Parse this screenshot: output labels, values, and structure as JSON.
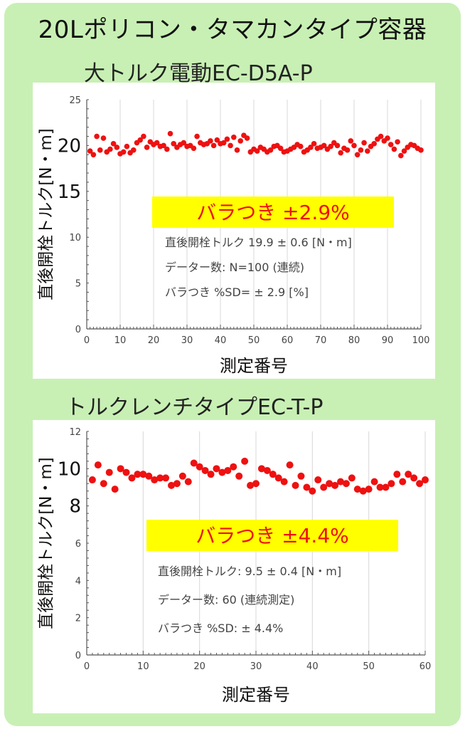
{
  "title": "20Lポリコン・タマカンタイプ容器",
  "chart_data": [
    {
      "type": "scatter",
      "title": "大トルク電動EC-D5A-P",
      "xlabel": "測定番号",
      "ylabel": "直後開栓トルク[N・m]",
      "xlim": [
        0,
        100
      ],
      "ylim": [
        0,
        25
      ],
      "xticks": [
        0,
        10,
        20,
        30,
        40,
        50,
        60,
        70,
        80,
        90,
        100
      ],
      "yticks": [
        0,
        5,
        10,
        15,
        20,
        25
      ],
      "point_color": "#ee1111",
      "highlight": "バラつき ±2.9%",
      "notes": [
        "直後開栓トルク 19.9 ± 0.6 [N・m]",
        "データー数: N=100 (連続)",
        "バラつき %SD= ± 2.9 [%]"
      ],
      "x": [
        1,
        2,
        3,
        4,
        5,
        6,
        7,
        8,
        9,
        10,
        11,
        12,
        13,
        14,
        15,
        16,
        17,
        18,
        19,
        20,
        21,
        22,
        23,
        24,
        25,
        26,
        27,
        28,
        29,
        30,
        31,
        32,
        33,
        34,
        35,
        36,
        37,
        38,
        39,
        40,
        41,
        42,
        43,
        44,
        45,
        46,
        47,
        48,
        49,
        50,
        51,
        52,
        53,
        54,
        55,
        56,
        57,
        58,
        59,
        60,
        61,
        62,
        63,
        64,
        65,
        66,
        67,
        68,
        69,
        70,
        71,
        72,
        73,
        74,
        75,
        76,
        77,
        78,
        79,
        80,
        81,
        82,
        83,
        84,
        85,
        86,
        87,
        88,
        89,
        90,
        91,
        92,
        93,
        94,
        95,
        96,
        97,
        98,
        99,
        100
      ],
      "y": [
        19.4,
        19.0,
        21.0,
        19.5,
        20.8,
        19.3,
        19.6,
        20.2,
        19.8,
        19.1,
        19.3,
        19.9,
        19.2,
        19.5,
        20.3,
        20.6,
        21.0,
        19.8,
        20.4,
        20.1,
        20.3,
        19.9,
        20.0,
        19.6,
        21.3,
        20.2,
        19.8,
        20.1,
        20.3,
        19.9,
        20.0,
        19.7,
        21.0,
        20.3,
        20.1,
        20.2,
        20.5,
        20.0,
        20.6,
        20.2,
        20.3,
        20.7,
        20.0,
        20.9,
        19.5,
        20.5,
        21.1,
        20.8,
        19.3,
        19.6,
        19.4,
        19.8,
        19.6,
        19.3,
        19.5,
        19.9,
        20.0,
        19.7,
        19.3,
        19.4,
        19.6,
        19.8,
        20.1,
        19.9,
        19.3,
        19.5,
        19.8,
        20.2,
        19.7,
        19.8,
        20.0,
        19.6,
        19.9,
        20.3,
        20.0,
        19.2,
        19.7,
        19.5,
        20.5,
        20.0,
        19.0,
        19.5,
        20.3,
        19.4,
        19.9,
        20.2,
        20.7,
        21.0,
        20.5,
        20.8,
        20.1,
        19.6,
        20.4,
        18.9,
        19.4,
        19.8,
        20.1,
        20.0,
        19.7,
        19.5
      ]
    },
    {
      "type": "scatter",
      "title": "トルクレンチタイプEC-T-P",
      "xlabel": "測定番号",
      "ylabel": "直後開栓トルク[N・m]",
      "xlim": [
        0,
        60
      ],
      "ylim": [
        0,
        12
      ],
      "xticks": [
        0,
        10,
        20,
        30,
        40,
        50,
        60
      ],
      "yticks": [
        0,
        2,
        4,
        6,
        8,
        10,
        12
      ],
      "point_color": "#ee1111",
      "highlight": "バラつき ±4.4%",
      "notes": [
        "直後開栓トルク: 9.5 ± 0.4 [N・m]",
        "データー数: 60 (連続測定)",
        "バラつき %SD: ± 4.4%"
      ],
      "x": [
        1,
        2,
        3,
        4,
        5,
        6,
        7,
        8,
        9,
        10,
        11,
        12,
        13,
        14,
        15,
        16,
        17,
        18,
        19,
        20,
        21,
        22,
        23,
        24,
        25,
        26,
        27,
        28,
        29,
        30,
        31,
        32,
        33,
        34,
        35,
        36,
        37,
        38,
        39,
        40,
        41,
        42,
        43,
        44,
        45,
        46,
        47,
        48,
        49,
        50,
        51,
        52,
        53,
        54,
        55,
        56,
        57,
        58,
        59,
        60
      ],
      "y": [
        9.4,
        10.2,
        9.2,
        9.8,
        8.9,
        10.0,
        9.8,
        9.5,
        9.7,
        9.7,
        9.6,
        9.4,
        9.5,
        9.5,
        9.1,
        9.2,
        9.6,
        9.3,
        10.3,
        10.1,
        9.9,
        9.7,
        10.0,
        9.8,
        9.9,
        10.1,
        9.6,
        10.4,
        9.1,
        9.2,
        10.0,
        9.9,
        9.7,
        9.5,
        9.3,
        10.2,
        9.1,
        9.6,
        9.0,
        8.8,
        9.4,
        9.0,
        9.2,
        9.1,
        9.3,
        9.2,
        9.5,
        8.9,
        8.8,
        8.9,
        9.3,
        9.0,
        9.0,
        9.2,
        9.7,
        9.3,
        9.7,
        9.5,
        9.2,
        9.4
      ]
    }
  ]
}
